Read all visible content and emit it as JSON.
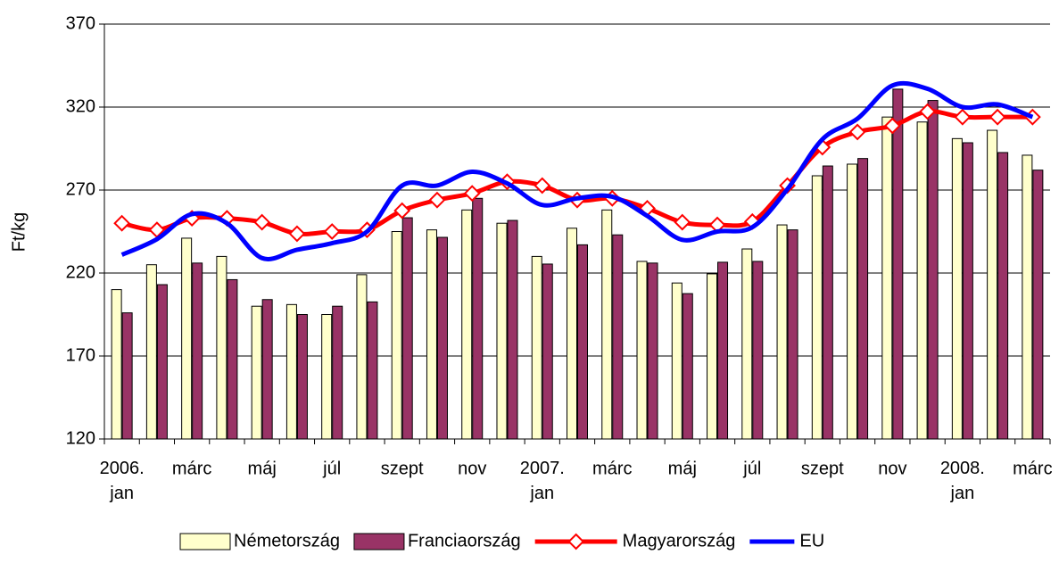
{
  "chart_data": {
    "type": "bar_line",
    "y_label": "Ft/kg",
    "categories": [
      "2006. jan",
      null,
      "márc",
      null,
      "máj",
      null,
      "júl",
      null,
      "szept",
      null,
      "nov",
      null,
      "2007. jan",
      null,
      "márc",
      null,
      "máj",
      null,
      "júl",
      null,
      "szept",
      null,
      "nov",
      null,
      "2008. jan",
      null,
      "márc"
    ],
    "series": [
      {
        "name": "Németország",
        "kind": "bar",
        "color": "#ffffcc",
        "values": [
          210,
          225,
          241,
          230,
          200,
          201,
          195,
          219,
          245,
          246,
          258,
          250,
          230,
          247,
          258,
          227,
          214,
          219.5,
          234.5,
          249,
          278.6,
          285.6,
          314,
          311,
          301,
          306,
          291
        ]
      },
      {
        "name": "Franciaország",
        "kind": "bar",
        "color": "#993366",
        "values": [
          196,
          213,
          226,
          216,
          204,
          195,
          200,
          202.6,
          253.3,
          241.5,
          265,
          251.7,
          225.4,
          237,
          243,
          226,
          207.6,
          226.5,
          227,
          246,
          284.5,
          289,
          330.8,
          324,
          298.5,
          292.6,
          282
        ]
      },
      {
        "name": "Magyarország",
        "kind": "line",
        "marker": "diamond",
        "color": "#ff0000",
        "values": [
          250,
          246,
          253,
          253,
          250.6,
          243.7,
          245,
          246,
          257.6,
          264,
          268,
          275,
          272.7,
          264,
          265,
          259,
          250.6,
          249,
          251,
          272.7,
          295.8,
          305,
          308.7,
          317.3,
          314,
          314,
          314
        ]
      },
      {
        "name": "EU",
        "kind": "line",
        "color": "#0000ff",
        "values": [
          231,
          240.4,
          255.5,
          250,
          229,
          234,
          238,
          245,
          272.7,
          272.7,
          281,
          274,
          261,
          265,
          266,
          254.4,
          240,
          245,
          247.6,
          270.5,
          300.6,
          313,
          333,
          331,
          320,
          321.6,
          314
        ]
      }
    ],
    "ylim": [
      120,
      370
    ],
    "yticks": [
      120,
      170,
      220,
      270,
      320,
      370
    ],
    "grid": true,
    "legend": "bottom"
  }
}
